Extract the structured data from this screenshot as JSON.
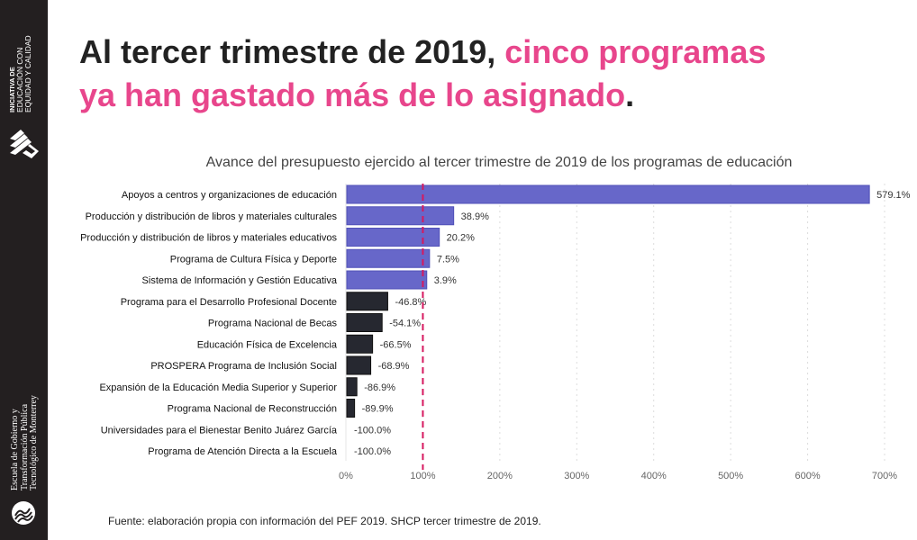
{
  "sidebar": {
    "org_top_line1": "INICIATIVA DE",
    "org_top_line2": "EDUCACIÓN CON",
    "org_top_line3": "EQUIDAD Y CALIDAD",
    "org_bottom_line1": "Escuela de Gobierno y",
    "org_bottom_line2": "Transformación Pública",
    "org_bottom_line3": "Tecnológico de Monterrey"
  },
  "headline": {
    "part1": "Al tercer trimestre de 2019, ",
    "part2": "cinco programas",
    "part3": "ya han gastado más de lo asignado",
    "part4": "."
  },
  "colors": {
    "positive": "#6767c9",
    "negative": "#262830",
    "reference_line": "#d6185e",
    "headline_accent": "#e8468c",
    "sidebar": "#231f20"
  },
  "chart_data": {
    "type": "bar",
    "orientation": "horizontal",
    "title": "Avance del presupuesto ejercido al tercer trimestre de 2019 de los programas de educación",
    "categories": [
      "Apoyos a centros y organizaciones de educación",
      "Producción y distribución de libros y materiales culturales",
      "Producción y distribución de libros y materiales educativos",
      "Programa de Cultura Física y Deporte",
      "Sistema de Información y Gestión Educativa",
      "Programa para el Desarrollo Profesional Docente",
      "Programa Nacional de Becas",
      "Educación Física de Excelencia",
      "PROSPERA Programa de Inclusión Social",
      "Expansión de la Educación Media Superior y Superior",
      "Programa Nacional de Reconstrucción",
      "Universidades para el Bienestar Benito Juárez García",
      "Programa de Atención Directa a la Escuela"
    ],
    "values": [
      579.1,
      38.9,
      20.2,
      7.5,
      3.9,
      -46.8,
      -54.1,
      -66.5,
      -68.9,
      -86.9,
      -89.9,
      -100.0,
      -100.0
    ],
    "data_labels": [
      "579.1%",
      "38.9%",
      "20.2%",
      "7.5%",
      "3.9%",
      "-46.8%",
      "-54.1%",
      "-66.5%",
      "-68.9%",
      "-86.9%",
      "-89.9%",
      "-100.0%",
      "-100.0%"
    ],
    "xlim": [
      0,
      700
    ],
    "xticks": [
      "0%",
      "100%",
      "200%",
      "300%",
      "400%",
      "500%",
      "600%",
      "700%"
    ],
    "reference_line": 100,
    "grid": "vertical dotted",
    "legend": "none"
  },
  "source": "Fuente: elaboración propia con información del PEF 2019. SHCP tercer trimestre de 2019."
}
